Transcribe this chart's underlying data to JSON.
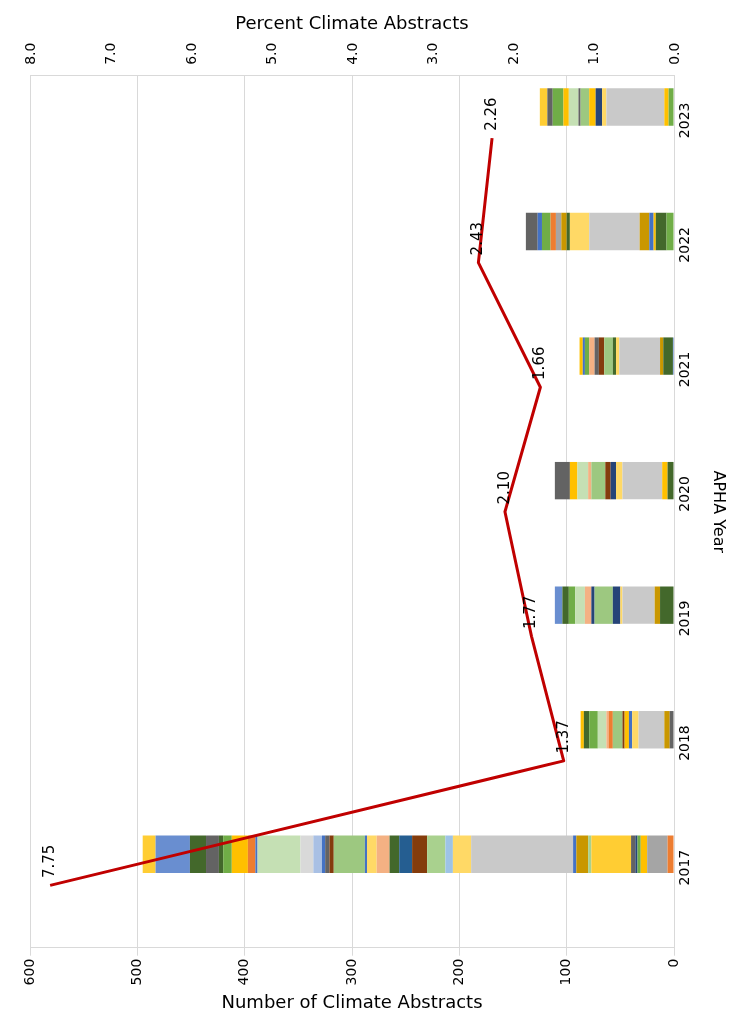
{
  "chart_data": {
    "type": "bar",
    "orientation": "horizontal",
    "stacked": true,
    "xlabel": "Number of Climate Abstracts",
    "x2label": "Percent Climate Abstracts",
    "ylabel": "APHA Year",
    "categories": [
      "2023",
      "2022",
      "2021",
      "2020",
      "2019",
      "2018",
      "2017"
    ],
    "xlim": [
      600,
      0
    ],
    "xticks": [
      0,
      100,
      200,
      300,
      400,
      500,
      600
    ],
    "x2lim": [
      8,
      0
    ],
    "x2ticks": [
      {
        "value": 0,
        "label": "0.0"
      },
      {
        "value": 1,
        "label": "1.0"
      },
      {
        "value": 2,
        "label": "2.0"
      },
      {
        "value": 3,
        "label": "3.0"
      },
      {
        "value": 4,
        "label": "4.0"
      },
      {
        "value": 5,
        "label": "5.0"
      },
      {
        "value": 6,
        "label": "6.0"
      },
      {
        "value": 7,
        "label": "7.0"
      },
      {
        "value": 8,
        "label": "8.0"
      }
    ],
    "grid": "x",
    "legend": false,
    "series": [
      {
        "values": [
          5,
          7,
          1,
          6,
          13,
          4,
          6
        ],
        "colors": [
          "#70ad47",
          "#70ad47",
          "#4472c4",
          "#43682b",
          "#43682b",
          "#636363",
          "#ed7d31"
        ]
      },
      {
        "values": [
          4,
          10,
          9,
          5,
          5,
          5,
          19
        ],
        "colors": [
          "#ffc000",
          "#43682b",
          "#43682b",
          "#ffc000",
          "#c99700",
          "#c99700",
          "#a5a5a5"
        ]
      },
      {
        "values": [
          54,
          2,
          3,
          37,
          30,
          24,
          6
        ],
        "colors": [
          "#c9c9c9",
          "#ffc000",
          "#c99700",
          "#c9c9c9",
          "#c9c9c9",
          "#c9c9c9",
          "#ffc000"
        ]
      },
      {
        "values": [
          4,
          4,
          38,
          6,
          2,
          6,
          3
        ],
        "colors": [
          "#ffd966",
          "#4472c4",
          "#c9c9c9",
          "#ffd966",
          "#ffd966",
          "#ffd966",
          "#70ad47"
        ]
      },
      {
        "values": [
          6,
          9,
          3,
          5,
          7,
          3,
          2
        ],
        "colors": [
          "#264478",
          "#c99700",
          "#ffd966",
          "#264478",
          "#264478",
          "#4472c4",
          "#264478"
        ]
      },
      {
        "values": [
          6,
          47,
          3,
          5,
          17,
          4,
          4
        ],
        "colors": [
          "#ffc000",
          "#c9c9c9",
          "#43682b",
          "#843c0c",
          "#9dc880",
          "#ffc000",
          "#636363"
        ]
      },
      {
        "values": [
          8,
          18,
          8,
          13,
          3,
          2,
          37
        ],
        "colors": [
          "#9dc880",
          "#ffd966",
          "#9dc880",
          "#9dc880",
          "#264478",
          "#843c0c",
          "#ffcd33"
        ]
      },
      {
        "values": [
          2,
          3,
          5,
          3,
          6,
          9,
          3
        ],
        "colors": [
          "#636363",
          "#43682b",
          "#843c0c",
          "#f4b183",
          "#f4b183",
          "#9dc880",
          "#a9d18e"
        ]
      },
      {
        "values": [
          9,
          5,
          4,
          10,
          9,
          4,
          11
        ],
        "colors": [
          "#c5e0b4",
          "#c99700",
          "#636363",
          "#c5e0b4",
          "#c5e0b4",
          "#ed7d31",
          "#c99700"
        ]
      },
      {
        "values": [
          5,
          5,
          5,
          7,
          6,
          2,
          3
        ],
        "colors": [
          "#ffc000",
          "#a5a5a5",
          "#f4b183",
          "#ffc000",
          "#70ad47",
          "#f4b183",
          "#4472c4"
        ]
      },
      {
        "values": [
          10,
          5,
          4,
          14,
          6,
          8,
          95
        ],
        "colors": [
          "#70ad47",
          "#ed7d31",
          "#70ad47",
          "#636363",
          "#43682b",
          "#c5e0b4",
          "#c9c9c9"
        ]
      },
      {
        "values": [
          5,
          8,
          2,
          null,
          7,
          8,
          17
        ],
        "colors": [
          "#636363",
          "#70ad47",
          "#4472c4",
          null,
          "#698ed0",
          "#70ad47",
          "#ffd966"
        ]
      },
      {
        "values": [
          7,
          4,
          3,
          null,
          null,
          5,
          7
        ],
        "colors": [
          "#ffcd33",
          "#4472c4",
          "#ffc000",
          null,
          null,
          "#43682b",
          "#9dc3e6"
        ]
      },
      {
        "values": [
          null,
          11,
          null,
          null,
          null,
          3,
          17
        ],
        "colors": [
          null,
          "#636363",
          null,
          null,
          null,
          "#ffc000",
          "#a9d18e"
        ]
      },
      {
        "values": [
          null,
          null,
          null,
          null,
          null,
          null,
          14
        ],
        "color": "#843c0c"
      },
      {
        "values": [
          null,
          null,
          null,
          null,
          null,
          null,
          12
        ],
        "color": "#255e91"
      },
      {
        "values": [
          null,
          null,
          null,
          null,
          null,
          null,
          9
        ],
        "color": "#43682b"
      },
      {
        "values": [
          null,
          null,
          null,
          null,
          null,
          null,
          12
        ],
        "color": "#f4b183"
      },
      {
        "values": [
          null,
          null,
          null,
          null,
          null,
          null,
          9
        ],
        "color": "#ffd966"
      },
      {
        "values": [
          null,
          null,
          null,
          null,
          null,
          null,
          2
        ],
        "color": "#4472c4"
      },
      {
        "values": [
          null,
          null,
          null,
          null,
          null,
          null,
          29
        ],
        "color": "#9dc880"
      },
      {
        "values": [
          null,
          null,
          null,
          null,
          null,
          null,
          4
        ],
        "color": "#843c0c"
      },
      {
        "values": [
          null,
          null,
          null,
          null,
          null,
          null,
          4
        ],
        "color": "#636363"
      },
      {
        "values": [
          null,
          null,
          null,
          null,
          null,
          null,
          3
        ],
        "color": "#4472c4"
      },
      {
        "values": [
          null,
          null,
          null,
          null,
          null,
          null,
          8
        ],
        "color": "#a9c0e4"
      },
      {
        "values": [
          null,
          null,
          null,
          null,
          null,
          null,
          12
        ],
        "color": "#d9d9d9"
      },
      {
        "values": [
          null,
          null,
          null,
          null,
          null,
          null,
          40
        ],
        "color": "#c5e0b4"
      },
      {
        "values": [
          null,
          null,
          null,
          null,
          null,
          null,
          2
        ],
        "color": "#4472c4"
      },
      {
        "values": [
          null,
          null,
          null,
          null,
          null,
          null,
          7
        ],
        "color": "#ed7d31"
      },
      {
        "values": [
          null,
          null,
          null,
          null,
          null,
          null,
          15
        ],
        "color": "#ffc000"
      },
      {
        "values": [
          null,
          null,
          null,
          null,
          null,
          null,
          8
        ],
        "color": "#70ad47"
      },
      {
        "values": [
          null,
          null,
          null,
          null,
          null,
          null,
          4
        ],
        "color": "#43682b"
      },
      {
        "values": [
          null,
          null,
          null,
          null,
          null,
          null,
          12
        ],
        "color": "#636363"
      },
      {
        "values": [
          null,
          null,
          null,
          null,
          null,
          null,
          15
        ],
        "color": "#43682b"
      },
      {
        "values": [
          null,
          null,
          null,
          null,
          null,
          null,
          32
        ],
        "color": "#698ed0"
      },
      {
        "values": [
          null,
          null,
          null,
          null,
          null,
          null,
          12
        ],
        "color": "#ffcd33"
      },
      {
        "type": "line",
        "axis": "x2",
        "color": "#c00000",
        "marker": "none",
        "values": [
          2.26,
          2.43,
          1.66,
          2.1,
          1.77,
          1.37,
          7.75
        ],
        "value_labels": [
          "2.26",
          "2.43",
          "1.66",
          "2.10",
          "1.77",
          "1.37",
          "7.75"
        ]
      }
    ]
  }
}
